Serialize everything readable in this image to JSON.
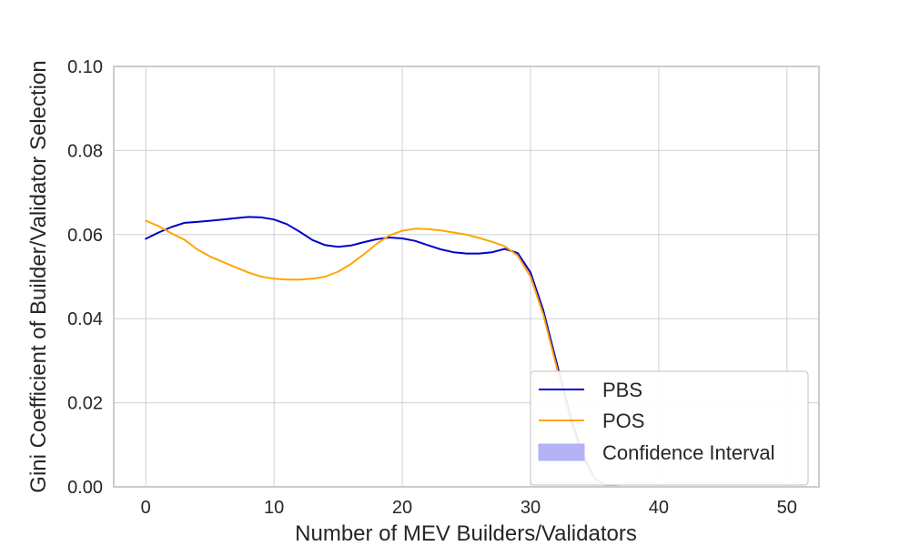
{
  "chart_data": {
    "type": "line",
    "xlabel": "Number of MEV Builders/Validators",
    "ylabel": "Gini Coefficient of Builder/Validator Selection",
    "xlim": [
      -2.5,
      52.5
    ],
    "ylim": [
      0,
      0.1
    ],
    "xticks": [
      0,
      10,
      20,
      30,
      40,
      50
    ],
    "yticks": [
      0.0,
      0.02,
      0.04,
      0.06,
      0.08,
      0.1
    ],
    "ytick_labels": [
      "0.00",
      "0.02",
      "0.04",
      "0.06",
      "0.08",
      "0.10"
    ],
    "grid": true,
    "legend_position": "lower-right",
    "legend": [
      "PBS",
      "POS",
      "Confidence Interval"
    ],
    "ci_color": "#b3b3f5",
    "series": [
      {
        "name": "PBS",
        "color": "#0000cc",
        "x": [
          0,
          1,
          2,
          3,
          4,
          5,
          6,
          7,
          8,
          9,
          10,
          11,
          12,
          13,
          14,
          15,
          16,
          17,
          18,
          19,
          20,
          21,
          22,
          23,
          24,
          25,
          26,
          27,
          28,
          29,
          30,
          31,
          32,
          33,
          34,
          35,
          36,
          37,
          38,
          40,
          45,
          50
        ],
        "y": [
          0.059,
          0.0605,
          0.0618,
          0.0628,
          0.063,
          0.0633,
          0.0636,
          0.0639,
          0.0642,
          0.0641,
          0.0636,
          0.0625,
          0.0607,
          0.0587,
          0.0575,
          0.0571,
          0.0574,
          0.0582,
          0.0589,
          0.0593,
          0.0591,
          0.0585,
          0.0575,
          0.0565,
          0.0558,
          0.0555,
          0.0555,
          0.0558,
          0.0566,
          0.0556,
          0.051,
          0.042,
          0.03,
          0.018,
          0.008,
          0.002,
          0.0001,
          0.0,
          0.0,
          0.0,
          0.0,
          0.0
        ]
      },
      {
        "name": "POS",
        "color": "#ffa500",
        "x": [
          0,
          1,
          2,
          3,
          4,
          5,
          6,
          7,
          8,
          9,
          10,
          11,
          12,
          13,
          14,
          15,
          16,
          17,
          18,
          19,
          20,
          21,
          22,
          23,
          24,
          25,
          26,
          27,
          28,
          29,
          30,
          31,
          32,
          33,
          34,
          35,
          36,
          37,
          38,
          40,
          45,
          50
        ],
        "y": [
          0.0633,
          0.062,
          0.0603,
          0.0588,
          0.0565,
          0.0548,
          0.0535,
          0.0522,
          0.051,
          0.05,
          0.0495,
          0.0493,
          0.0493,
          0.0495,
          0.05,
          0.0512,
          0.053,
          0.0553,
          0.0578,
          0.0598,
          0.0609,
          0.0614,
          0.0613,
          0.061,
          0.0605,
          0.06,
          0.0592,
          0.0583,
          0.0572,
          0.055,
          0.05,
          0.041,
          0.029,
          0.017,
          0.007,
          0.0018,
          0.0001,
          0.0,
          0.0,
          0.0,
          0.0,
          0.0
        ]
      }
    ]
  }
}
